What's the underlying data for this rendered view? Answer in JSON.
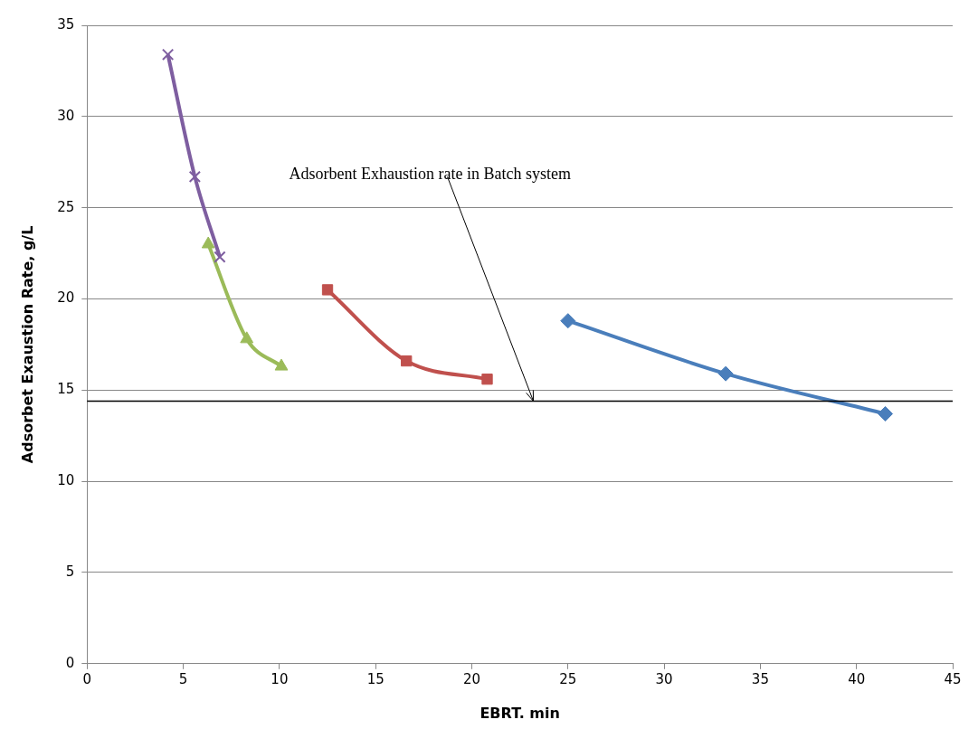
{
  "chart_data": {
    "type": "line",
    "xlabel": "EBRT. min",
    "ylabel": "Adsorbet Exaustion Rate, g/L",
    "xlim": [
      0,
      45
    ],
    "xticks": [
      0,
      5,
      10,
      15,
      20,
      25,
      30,
      35,
      40,
      45
    ],
    "ylim": [
      0,
      35
    ],
    "yticks": [
      0,
      5,
      10,
      15,
      20,
      25,
      30,
      35
    ],
    "grid": "y",
    "legend": false,
    "series": [
      {
        "color": "#7e5ea0",
        "marker": "cross",
        "x": [
          4.2,
          5.6,
          6.9
        ],
        "values": [
          33.4,
          26.7,
          22.3
        ]
      },
      {
        "color": "#9bbb59",
        "marker": "triangle",
        "x": [
          6.3,
          8.3,
          10.1
        ],
        "values": [
          23.0,
          17.8,
          16.3
        ]
      },
      {
        "color": "#c0504d",
        "marker": "square",
        "x": [
          12.5,
          16.6,
          20.8
        ],
        "values": [
          20.5,
          16.6,
          15.6
        ]
      },
      {
        "color": "#4a7ebb",
        "marker": "diamond",
        "x": [
          25,
          33.2,
          41.5
        ],
        "values": [
          18.8,
          15.9,
          13.7
        ]
      }
    ],
    "ref_lines": [
      {
        "axis": "y",
        "value": 14.4,
        "color": "#000000"
      }
    ],
    "annotations": [
      {
        "text": "Adsorbent Exhaustion rate in Batch system",
        "x": 23.2,
        "y": 14.4
      }
    ]
  }
}
